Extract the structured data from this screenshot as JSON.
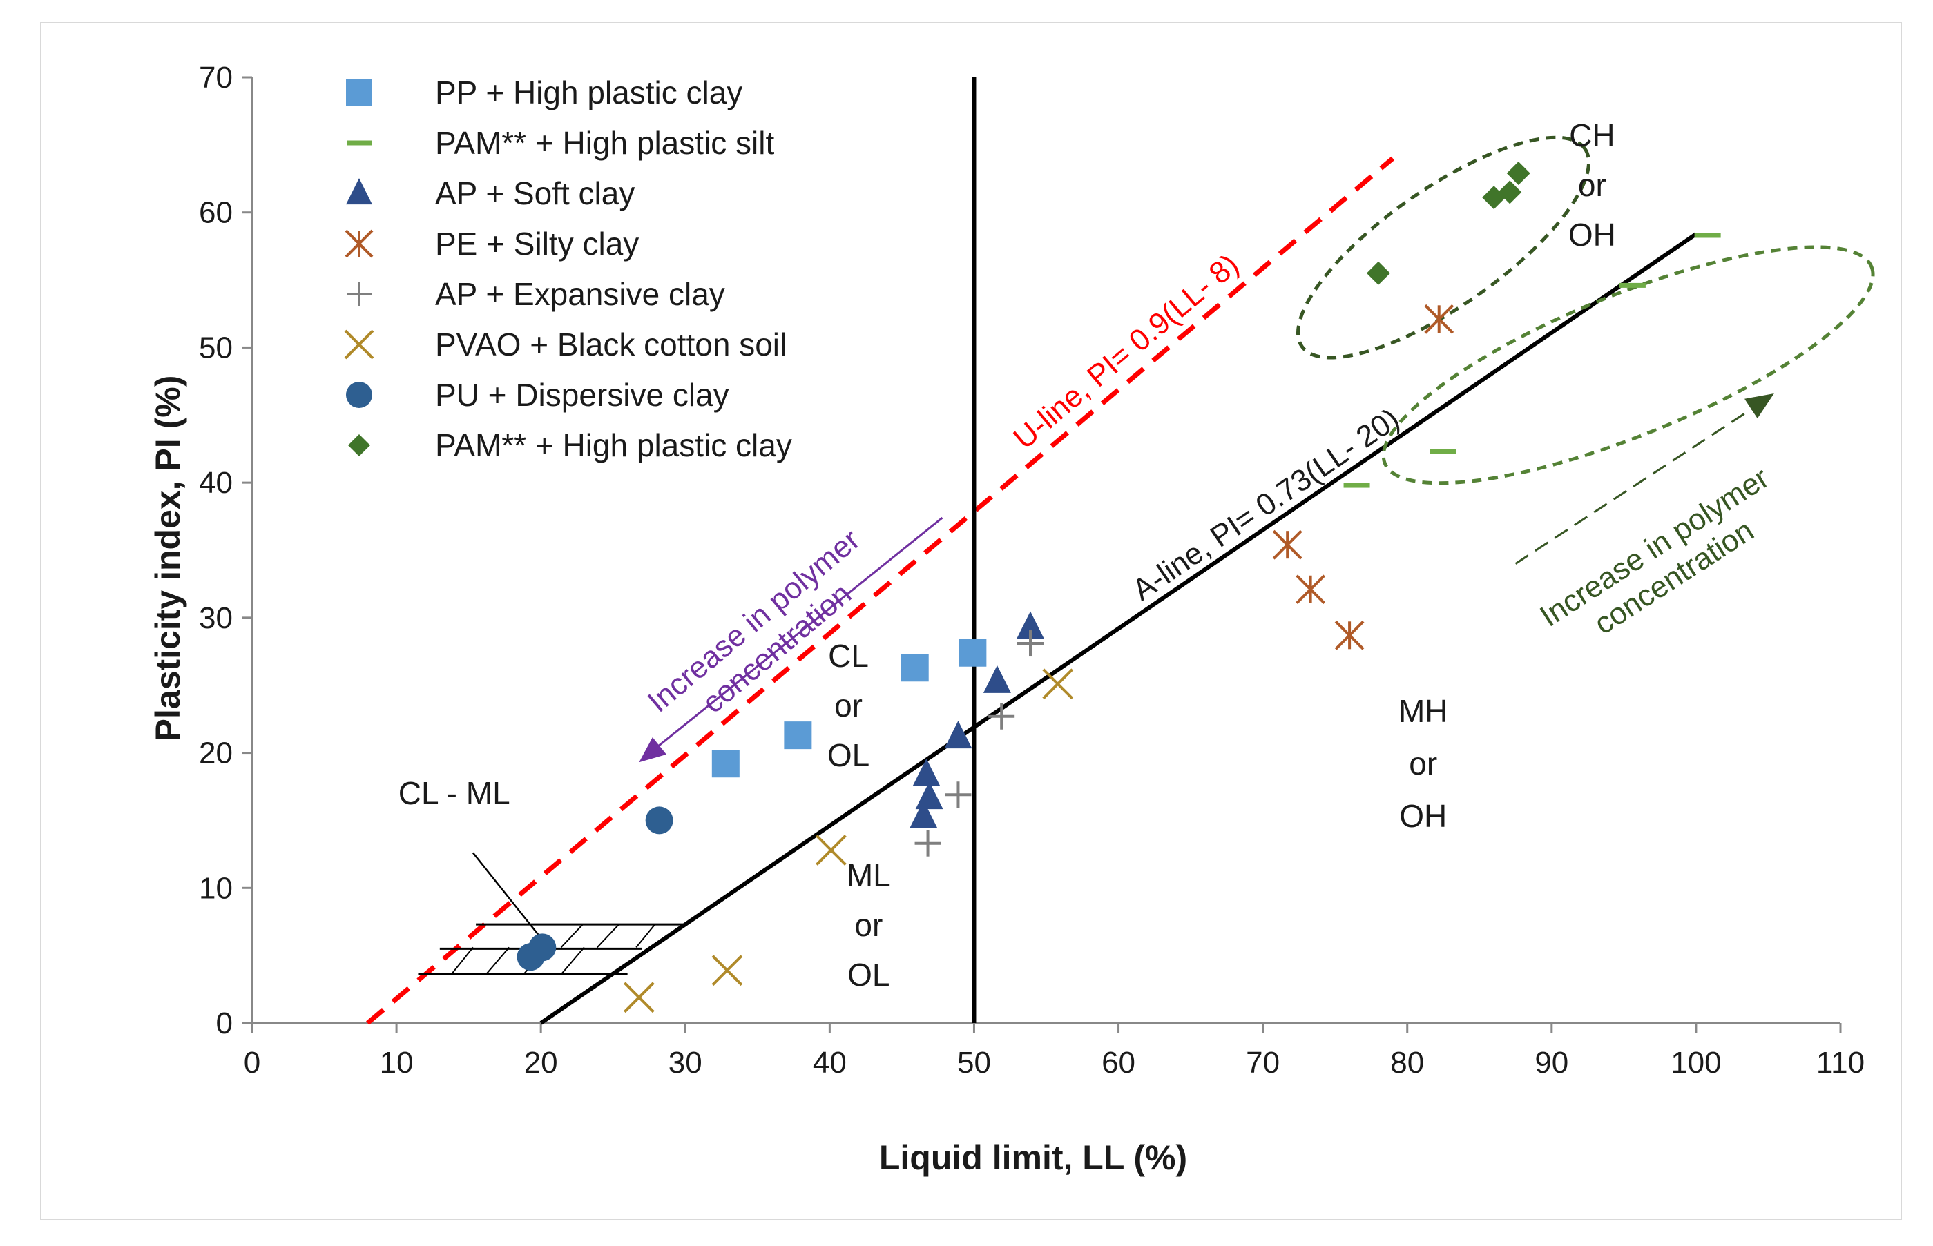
{
  "chart_data": {
    "type": "scatter",
    "title": "",
    "xlabel": "Liquid limit, LL (%)",
    "ylabel": "Plasticity index, PI (%)",
    "xlim": [
      0,
      110
    ],
    "ylim": [
      0,
      70
    ],
    "xticks": [
      "0",
      "10",
      "20",
      "30",
      "40",
      "50",
      "60",
      "70",
      "80",
      "90",
      "100",
      "110"
    ],
    "yticks": [
      "0",
      "10",
      "20",
      "30",
      "40",
      "50",
      "60",
      "70"
    ],
    "grid": false,
    "legend_position": "top-left",
    "series": [
      {
        "name": "PP + High plastic clay",
        "marker": "square",
        "color": "#5b9bd5",
        "points": [
          [
            32.8,
            19.2
          ],
          [
            37.8,
            21.3
          ],
          [
            45.9,
            26.3
          ],
          [
            49.9,
            27.4
          ]
        ]
      },
      {
        "name": "PAM** + High plastic silt",
        "marker": "dash",
        "color": "#70ad47",
        "points": [
          [
            76.5,
            39.8
          ],
          [
            82.5,
            42.3
          ],
          [
            95.6,
            54.6
          ],
          [
            100.8,
            58.3
          ]
        ]
      },
      {
        "name": "AP + Soft clay",
        "marker": "triangle",
        "color": "#2e4d8a",
        "points": [
          [
            46.5,
            15.3
          ],
          [
            46.9,
            16.7
          ],
          [
            46.7,
            18.4
          ],
          [
            48.9,
            21.2
          ],
          [
            51.6,
            25.3
          ],
          [
            53.9,
            29.3
          ]
        ]
      },
      {
        "name": "PE + Silty clay",
        "marker": "asterisk",
        "color": "#b05a28",
        "points": [
          [
            71.7,
            35.4
          ],
          [
            73.3,
            32.1
          ],
          [
            76,
            28.7
          ],
          [
            82.2,
            52.1
          ]
        ]
      },
      {
        "name": "AP + Expansive clay",
        "marker": "plus",
        "color": "#7f7f7f",
        "points": [
          [
            46.8,
            13.3
          ],
          [
            48.9,
            16.9
          ],
          [
            51.9,
            22.7
          ],
          [
            53.9,
            28.1
          ]
        ]
      },
      {
        "name": "PVAO + Black cotton soil",
        "marker": "x",
        "color": "#b08a2a",
        "points": [
          [
            26.8,
            1.9
          ],
          [
            32.9,
            3.9
          ],
          [
            40.1,
            12.8
          ],
          [
            55.8,
            25.1
          ]
        ]
      },
      {
        "name": "PU + Dispersive clay",
        "marker": "circle",
        "color": "#2e5f91",
        "points": [
          [
            19.3,
            4.9
          ],
          [
            20.1,
            5.6
          ],
          [
            28.2,
            15
          ]
        ]
      },
      {
        "name": "PAM** + High plastic clay",
        "marker": "diamond",
        "color": "#40752a",
        "points": [
          [
            78,
            55.5
          ],
          [
            86,
            61.1
          ],
          [
            87.1,
            61.5
          ],
          [
            87.7,
            62.9
          ]
        ]
      }
    ],
    "lines": [
      {
        "name": "U-line",
        "label": "U-line, PI= 0.9(LL- 8)",
        "color": "#ff0000",
        "dashed": true,
        "from": [
          8,
          0
        ],
        "to": [
          79,
          64
        ]
      },
      {
        "name": "A-line",
        "label": "A-line, PI= 0.73(LL- 20)",
        "color": "#000000",
        "dashed": false,
        "from": [
          20,
          0
        ],
        "to": [
          100,
          58.4
        ]
      },
      {
        "name": "LL50",
        "color": "#000000",
        "dashed": false,
        "from": [
          50,
          0
        ],
        "to": [
          50,
          70
        ]
      }
    ],
    "annotations": {
      "zone_cl": [
        "CL",
        "or",
        "OL"
      ],
      "zone_ml": [
        "ML",
        "or",
        "OL"
      ],
      "zone_mh": [
        "MH",
        "or",
        "OH"
      ],
      "zone_ch": [
        "CH",
        "or",
        "OH"
      ],
      "zone_clml": "CL - ML",
      "arrow_purple": [
        "Increase in polymer",
        "concentration"
      ],
      "arrow_green": [
        "Increase in polymer",
        "concentration"
      ]
    },
    "colors": {
      "purple_arrow": "#7030a0",
      "green_arrow": "#375623",
      "green_ellipse": "#375623",
      "light_green_ellipse": "#548235"
    }
  }
}
